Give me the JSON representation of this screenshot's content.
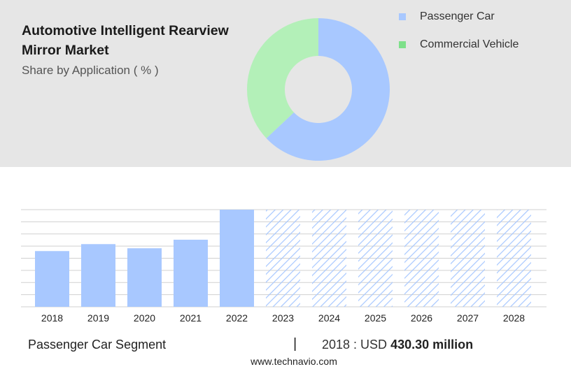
{
  "header": {
    "title": "Automotive Intelligent Rearview Mirror Market",
    "subtitle": "Share by Application ( % )"
  },
  "footer": {
    "segment_label": "Passenger Car Segment",
    "separator": "|",
    "stat_prefix": "2018 : USD",
    "stat_value": "430.30 million",
    "source": "www.technavio.com"
  },
  "colors": {
    "passenger": "#a8c8ff",
    "commercial": "#b3f0b8",
    "commercial_legend": "#7ee08a",
    "forecast_hatch": "#a8c8ff"
  },
  "chart_data": [
    {
      "type": "pie",
      "variant": "donut",
      "title": "Share by Application ( % )",
      "legend_position": "right",
      "labels": [
        "Passenger Car",
        "Commercial Vehicle"
      ],
      "values": [
        63,
        37
      ]
    },
    {
      "type": "bar",
      "categories": [
        "2018",
        "2019",
        "2020",
        "2021",
        "2022",
        "2023",
        "2024",
        "2025",
        "2026",
        "2027",
        "2028"
      ],
      "series": [
        {
          "name": "Passenger Car",
          "values": [
            430.3,
            484,
            452,
            518,
            750,
            750,
            750,
            750,
            750,
            750,
            750
          ],
          "forecast": [
            false,
            false,
            false,
            false,
            false,
            true,
            true,
            true,
            true,
            true,
            true
          ]
        }
      ],
      "ylim": [
        0,
        750
      ],
      "grid": true
    }
  ]
}
